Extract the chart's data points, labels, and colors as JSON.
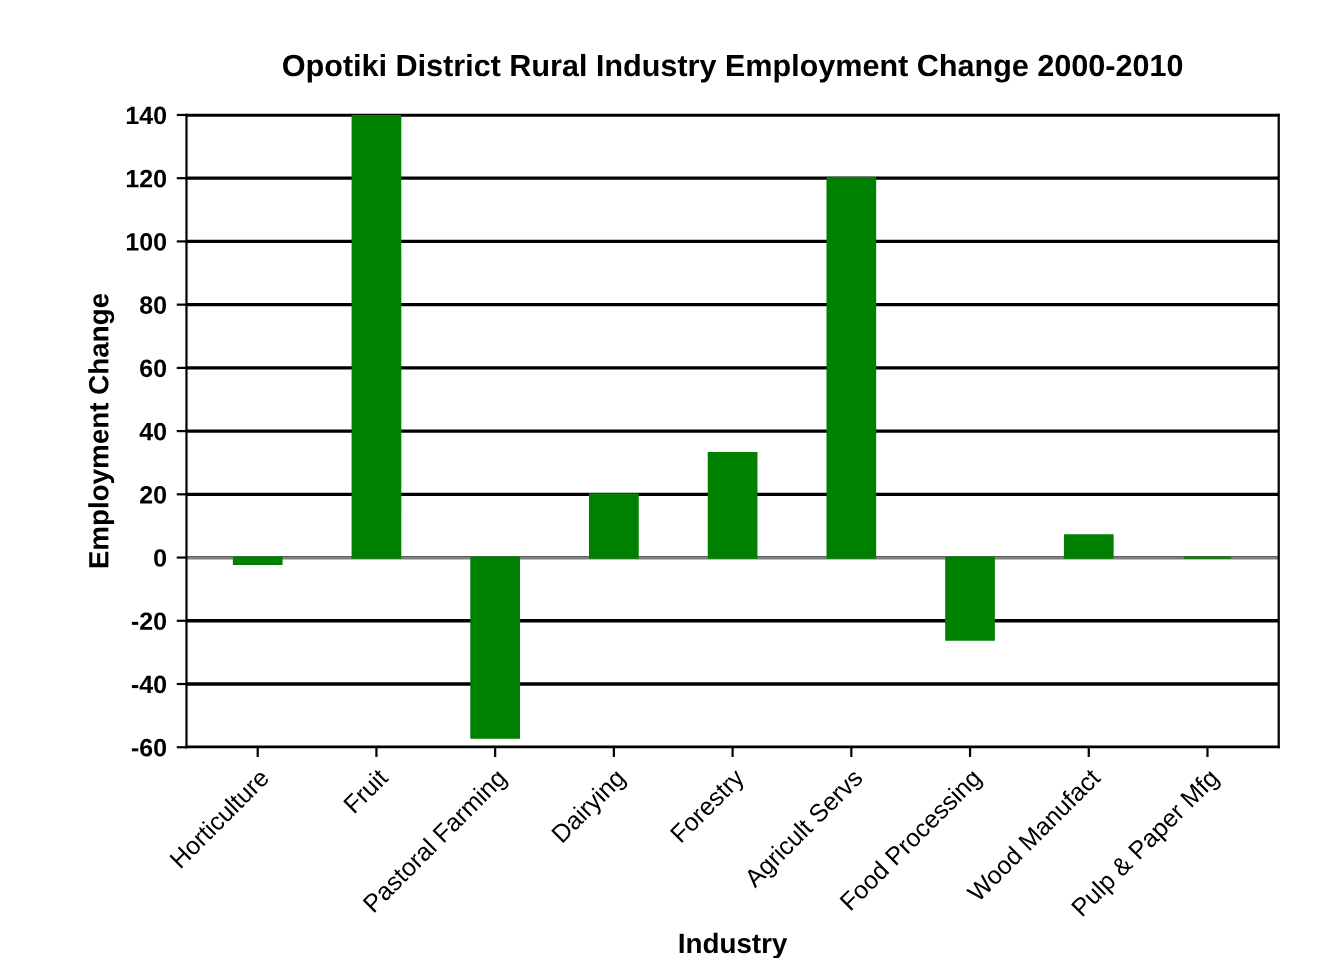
{
  "chart_data": {
    "type": "bar",
    "title": "Opotiki District Rural Industry Employment Change 2000-2010",
    "xlabel": "Industry",
    "ylabel": "Employment Change",
    "categories": [
      "Horticulture",
      "Fruit",
      "Pastoral Farming",
      "Dairying",
      "Forestry",
      "Agricult Servs",
      "Food Processing",
      "Wood Manufact",
      "Pulp & Paper Mfg"
    ],
    "values": [
      -2,
      140,
      -57,
      20,
      33,
      120,
      -26,
      7,
      0
    ],
    "color": "#008000",
    "ylim": [
      -60,
      140
    ],
    "yticks": [
      -60,
      -40,
      -20,
      0,
      20,
      40,
      60,
      80,
      100,
      120,
      140
    ],
    "grid": "y"
  }
}
